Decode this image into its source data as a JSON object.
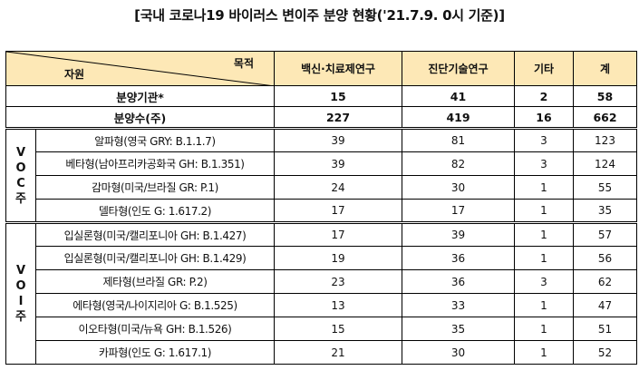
{
  "title": "[국내 코로나19 바이러스 변이주 분양 현황('21.7.9. 0시 기준)]",
  "header": {
    "corner_top": "목적",
    "corner_bottom": "자원",
    "columns": [
      "백신·치료제연구",
      "진단기술연구",
      "기타",
      "계"
    ]
  },
  "summary": [
    {
      "label": "분양기관*",
      "values": [
        "15",
        "41",
        "2",
        "58"
      ]
    },
    {
      "label": "분양수(주)",
      "values": [
        "227",
        "419",
        "16",
        "662"
      ]
    }
  ],
  "groups": [
    {
      "label_chars": [
        "V",
        "O",
        "C",
        "주"
      ],
      "rows": [
        {
          "name": "알파형(영국 GRY: B.1.1.7)",
          "values": [
            "39",
            "81",
            "3",
            "123"
          ]
        },
        {
          "name": "베타형(남아프리카공화국 GH: B.1.351)",
          "values": [
            "39",
            "82",
            "3",
            "124"
          ]
        },
        {
          "name": "감마형(미국/브라질 GR: P.1)",
          "values": [
            "24",
            "30",
            "1",
            "55"
          ]
        },
        {
          "name": "델타형(인도 G: 1.617.2)",
          "values": [
            "17",
            "17",
            "1",
            "35"
          ]
        }
      ]
    },
    {
      "label_chars": [
        "V",
        "O",
        "I",
        "주"
      ],
      "rows": [
        {
          "name": "입실론형(미국/캘리포니아 GH: B.1.427)",
          "values": [
            "17",
            "39",
            "1",
            "57"
          ]
        },
        {
          "name": "입실론형(미국/캘리포니아 GH: B.1.429)",
          "values": [
            "19",
            "36",
            "1",
            "56"
          ]
        },
        {
          "name": "제타형(브라질 GR: P.2)",
          "values": [
            "23",
            "36",
            "3",
            "62"
          ]
        },
        {
          "name": "에타형(영국/나이지리아 G: B.1.525)",
          "values": [
            "13",
            "33",
            "1",
            "47"
          ]
        },
        {
          "name": "이오타형(미국/뉴욕 GH: B.1.526)",
          "values": [
            "15",
            "35",
            "1",
            "51"
          ]
        },
        {
          "name": "카파형(인도 G: 1.617.1)",
          "values": [
            "21",
            "30",
            "1",
            "52"
          ]
        }
      ]
    }
  ],
  "colors": {
    "header_bg": "#fde8b6",
    "border": "#000000"
  }
}
